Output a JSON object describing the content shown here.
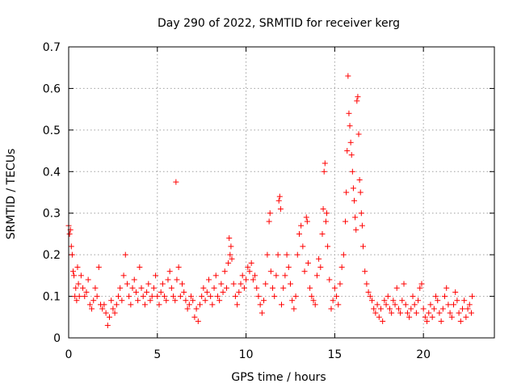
{
  "chart_data": {
    "type": "scatter",
    "title": "Day 290 of 2022, SRMTID for receiver kerg",
    "xlabel": "GPS time / hours",
    "ylabel": "SRMTID / TECUs",
    "xlim": [
      0,
      24
    ],
    "ylim": [
      0,
      0.7
    ],
    "xticks": [
      0,
      5,
      10,
      15,
      20
    ],
    "xtick_labels": [
      "0",
      "5",
      "10",
      "15",
      "20"
    ],
    "yticks": [
      0,
      0.1,
      0.2,
      0.3,
      0.4,
      0.5,
      0.6,
      0.7
    ],
    "ytick_labels": [
      "0",
      "0.1",
      "0.2",
      "0.3",
      "0.4",
      "0.5",
      "0.6",
      "0.7"
    ],
    "grid": true,
    "marker": "+",
    "color": "#ff0000",
    "series": [
      {
        "name": "SRMTID",
        "points": [
          [
            0.0,
            0.27
          ],
          [
            0.05,
            0.25
          ],
          [
            0.1,
            0.26
          ],
          [
            0.15,
            0.22
          ],
          [
            0.2,
            0.2
          ],
          [
            0.25,
            0.16
          ],
          [
            0.3,
            0.15
          ],
          [
            0.35,
            0.1
          ],
          [
            0.4,
            0.12
          ],
          [
            0.45,
            0.09
          ],
          [
            0.5,
            0.17
          ],
          [
            0.55,
            0.13
          ],
          [
            0.6,
            0.1
          ],
          [
            0.7,
            0.15
          ],
          [
            0.8,
            0.12
          ],
          [
            0.9,
            0.1
          ],
          [
            1.0,
            0.11
          ],
          [
            1.1,
            0.14
          ],
          [
            1.2,
            0.08
          ],
          [
            1.3,
            0.07
          ],
          [
            1.4,
            0.09
          ],
          [
            1.5,
            0.12
          ],
          [
            1.6,
            0.1
          ],
          [
            1.7,
            0.17
          ],
          [
            1.8,
            0.08
          ],
          [
            1.9,
            0.07
          ],
          [
            2.0,
            0.08
          ],
          [
            2.1,
            0.06
          ],
          [
            2.2,
            0.03
          ],
          [
            2.3,
            0.05
          ],
          [
            2.4,
            0.09
          ],
          [
            2.5,
            0.07
          ],
          [
            2.6,
            0.06
          ],
          [
            2.7,
            0.08
          ],
          [
            2.8,
            0.1
          ],
          [
            2.9,
            0.12
          ],
          [
            3.0,
            0.09
          ],
          [
            3.1,
            0.15
          ],
          [
            3.2,
            0.2
          ],
          [
            3.3,
            0.13
          ],
          [
            3.4,
            0.1
          ],
          [
            3.5,
            0.08
          ],
          [
            3.6,
            0.12
          ],
          [
            3.7,
            0.14
          ],
          [
            3.8,
            0.11
          ],
          [
            3.9,
            0.09
          ],
          [
            4.0,
            0.17
          ],
          [
            4.1,
            0.12
          ],
          [
            4.2,
            0.1
          ],
          [
            4.3,
            0.08
          ],
          [
            4.4,
            0.11
          ],
          [
            4.5,
            0.13
          ],
          [
            4.6,
            0.09
          ],
          [
            4.7,
            0.1
          ],
          [
            4.8,
            0.12
          ],
          [
            4.9,
            0.15
          ],
          [
            5.0,
            0.1
          ],
          [
            5.1,
            0.08
          ],
          [
            5.2,
            0.11
          ],
          [
            5.3,
            0.13
          ],
          [
            5.4,
            0.1
          ],
          [
            5.5,
            0.09
          ],
          [
            5.6,
            0.14
          ],
          [
            5.7,
            0.16
          ],
          [
            5.8,
            0.12
          ],
          [
            5.9,
            0.1
          ],
          [
            6.0,
            0.09
          ],
          [
            6.05,
            0.375
          ],
          [
            6.1,
            0.14
          ],
          [
            6.2,
            0.17
          ],
          [
            6.3,
            0.1
          ],
          [
            6.4,
            0.13
          ],
          [
            6.5,
            0.11
          ],
          [
            6.6,
            0.09
          ],
          [
            6.7,
            0.07
          ],
          [
            6.8,
            0.08
          ],
          [
            6.9,
            0.1
          ],
          [
            7.0,
            0.09
          ],
          [
            7.1,
            0.05
          ],
          [
            7.2,
            0.07
          ],
          [
            7.3,
            0.04
          ],
          [
            7.4,
            0.08
          ],
          [
            7.5,
            0.1
          ],
          [
            7.6,
            0.12
          ],
          [
            7.7,
            0.09
          ],
          [
            7.8,
            0.11
          ],
          [
            7.9,
            0.14
          ],
          [
            8.0,
            0.1
          ],
          [
            8.1,
            0.08
          ],
          [
            8.2,
            0.12
          ],
          [
            8.3,
            0.15
          ],
          [
            8.4,
            0.1
          ],
          [
            8.5,
            0.09
          ],
          [
            8.6,
            0.13
          ],
          [
            8.7,
            0.11
          ],
          [
            8.8,
            0.16
          ],
          [
            8.9,
            0.12
          ],
          [
            9.0,
            0.18
          ],
          [
            9.05,
            0.24
          ],
          [
            9.1,
            0.2
          ],
          [
            9.15,
            0.22
          ],
          [
            9.2,
            0.19
          ],
          [
            9.3,
            0.13
          ],
          [
            9.4,
            0.1
          ],
          [
            9.5,
            0.08
          ],
          [
            9.6,
            0.11
          ],
          [
            9.7,
            0.13
          ],
          [
            9.8,
            0.15
          ],
          [
            9.9,
            0.12
          ],
          [
            10.0,
            0.14
          ],
          [
            10.1,
            0.17
          ],
          [
            10.2,
            0.16
          ],
          [
            10.3,
            0.18
          ],
          [
            10.4,
            0.14
          ],
          [
            10.5,
            0.15
          ],
          [
            10.6,
            0.12
          ],
          [
            10.7,
            0.1
          ],
          [
            10.8,
            0.08
          ],
          [
            10.9,
            0.06
          ],
          [
            11.0,
            0.09
          ],
          [
            11.1,
            0.13
          ],
          [
            11.2,
            0.2
          ],
          [
            11.3,
            0.28
          ],
          [
            11.35,
            0.3
          ],
          [
            11.4,
            0.16
          ],
          [
            11.5,
            0.12
          ],
          [
            11.6,
            0.1
          ],
          [
            11.7,
            0.15
          ],
          [
            11.8,
            0.2
          ],
          [
            11.85,
            0.33
          ],
          [
            11.9,
            0.34
          ],
          [
            11.95,
            0.31
          ],
          [
            12.0,
            0.08
          ],
          [
            12.1,
            0.12
          ],
          [
            12.2,
            0.15
          ],
          [
            12.3,
            0.2
          ],
          [
            12.4,
            0.17
          ],
          [
            12.5,
            0.13
          ],
          [
            12.6,
            0.09
          ],
          [
            12.7,
            0.07
          ],
          [
            12.8,
            0.1
          ],
          [
            12.9,
            0.2
          ],
          [
            13.0,
            0.25
          ],
          [
            13.1,
            0.27
          ],
          [
            13.2,
            0.22
          ],
          [
            13.3,
            0.16
          ],
          [
            13.4,
            0.29
          ],
          [
            13.45,
            0.28
          ],
          [
            13.5,
            0.18
          ],
          [
            13.6,
            0.12
          ],
          [
            13.7,
            0.1
          ],
          [
            13.8,
            0.09
          ],
          [
            13.9,
            0.08
          ],
          [
            14.0,
            0.15
          ],
          [
            14.1,
            0.19
          ],
          [
            14.2,
            0.17
          ],
          [
            14.3,
            0.25
          ],
          [
            14.35,
            0.31
          ],
          [
            14.4,
            0.4
          ],
          [
            14.45,
            0.42
          ],
          [
            14.5,
            0.28
          ],
          [
            14.55,
            0.3
          ],
          [
            14.6,
            0.22
          ],
          [
            14.7,
            0.14
          ],
          [
            14.8,
            0.07
          ],
          [
            14.9,
            0.09
          ],
          [
            15.0,
            0.12
          ],
          [
            15.1,
            0.1
          ],
          [
            15.2,
            0.08
          ],
          [
            15.3,
            0.13
          ],
          [
            15.4,
            0.17
          ],
          [
            15.5,
            0.2
          ],
          [
            15.6,
            0.28
          ],
          [
            15.65,
            0.35
          ],
          [
            15.7,
            0.45
          ],
          [
            15.75,
            0.63
          ],
          [
            15.8,
            0.54
          ],
          [
            15.85,
            0.51
          ],
          [
            15.9,
            0.47
          ],
          [
            15.95,
            0.44
          ],
          [
            16.0,
            0.4
          ],
          [
            16.05,
            0.36
          ],
          [
            16.1,
            0.33
          ],
          [
            16.15,
            0.29
          ],
          [
            16.2,
            0.26
          ],
          [
            16.25,
            0.57
          ],
          [
            16.3,
            0.58
          ],
          [
            16.35,
            0.49
          ],
          [
            16.4,
            0.38
          ],
          [
            16.45,
            0.35
          ],
          [
            16.5,
            0.3
          ],
          [
            16.55,
            0.27
          ],
          [
            16.6,
            0.22
          ],
          [
            16.7,
            0.16
          ],
          [
            16.8,
            0.13
          ],
          [
            16.9,
            0.11
          ],
          [
            17.0,
            0.1
          ],
          [
            17.1,
            0.09
          ],
          [
            17.2,
            0.07
          ],
          [
            17.3,
            0.06
          ],
          [
            17.4,
            0.08
          ],
          [
            17.5,
            0.05
          ],
          [
            17.6,
            0.07
          ],
          [
            17.7,
            0.04
          ],
          [
            17.8,
            0.09
          ],
          [
            17.9,
            0.08
          ],
          [
            18.0,
            0.1
          ],
          [
            18.1,
            0.07
          ],
          [
            18.2,
            0.06
          ],
          [
            18.3,
            0.09
          ],
          [
            18.4,
            0.08
          ],
          [
            18.5,
            0.12
          ],
          [
            18.6,
            0.07
          ],
          [
            18.7,
            0.06
          ],
          [
            18.8,
            0.09
          ],
          [
            18.9,
            0.13
          ],
          [
            19.0,
            0.08
          ],
          [
            19.1,
            0.06
          ],
          [
            19.2,
            0.05
          ],
          [
            19.3,
            0.07
          ],
          [
            19.4,
            0.1
          ],
          [
            19.5,
            0.08
          ],
          [
            19.6,
            0.06
          ],
          [
            19.7,
            0.09
          ],
          [
            19.8,
            0.12
          ],
          [
            19.9,
            0.13
          ],
          [
            20.0,
            0.07
          ],
          [
            20.1,
            0.05
          ],
          [
            20.2,
            0.04
          ],
          [
            20.3,
            0.06
          ],
          [
            20.4,
            0.08
          ],
          [
            20.5,
            0.05
          ],
          [
            20.6,
            0.07
          ],
          [
            20.7,
            0.1
          ],
          [
            20.8,
            0.09
          ],
          [
            20.9,
            0.06
          ],
          [
            21.0,
            0.04
          ],
          [
            21.1,
            0.07
          ],
          [
            21.2,
            0.1
          ],
          [
            21.3,
            0.12
          ],
          [
            21.4,
            0.08
          ],
          [
            21.5,
            0.06
          ],
          [
            21.6,
            0.05
          ],
          [
            21.7,
            0.08
          ],
          [
            21.8,
            0.11
          ],
          [
            21.9,
            0.09
          ],
          [
            22.0,
            0.06
          ],
          [
            22.1,
            0.04
          ],
          [
            22.2,
            0.07
          ],
          [
            22.3,
            0.09
          ],
          [
            22.4,
            0.05
          ],
          [
            22.5,
            0.07
          ],
          [
            22.6,
            0.08
          ],
          [
            22.7,
            0.06
          ],
          [
            22.75,
            0.1
          ]
        ]
      }
    ]
  }
}
